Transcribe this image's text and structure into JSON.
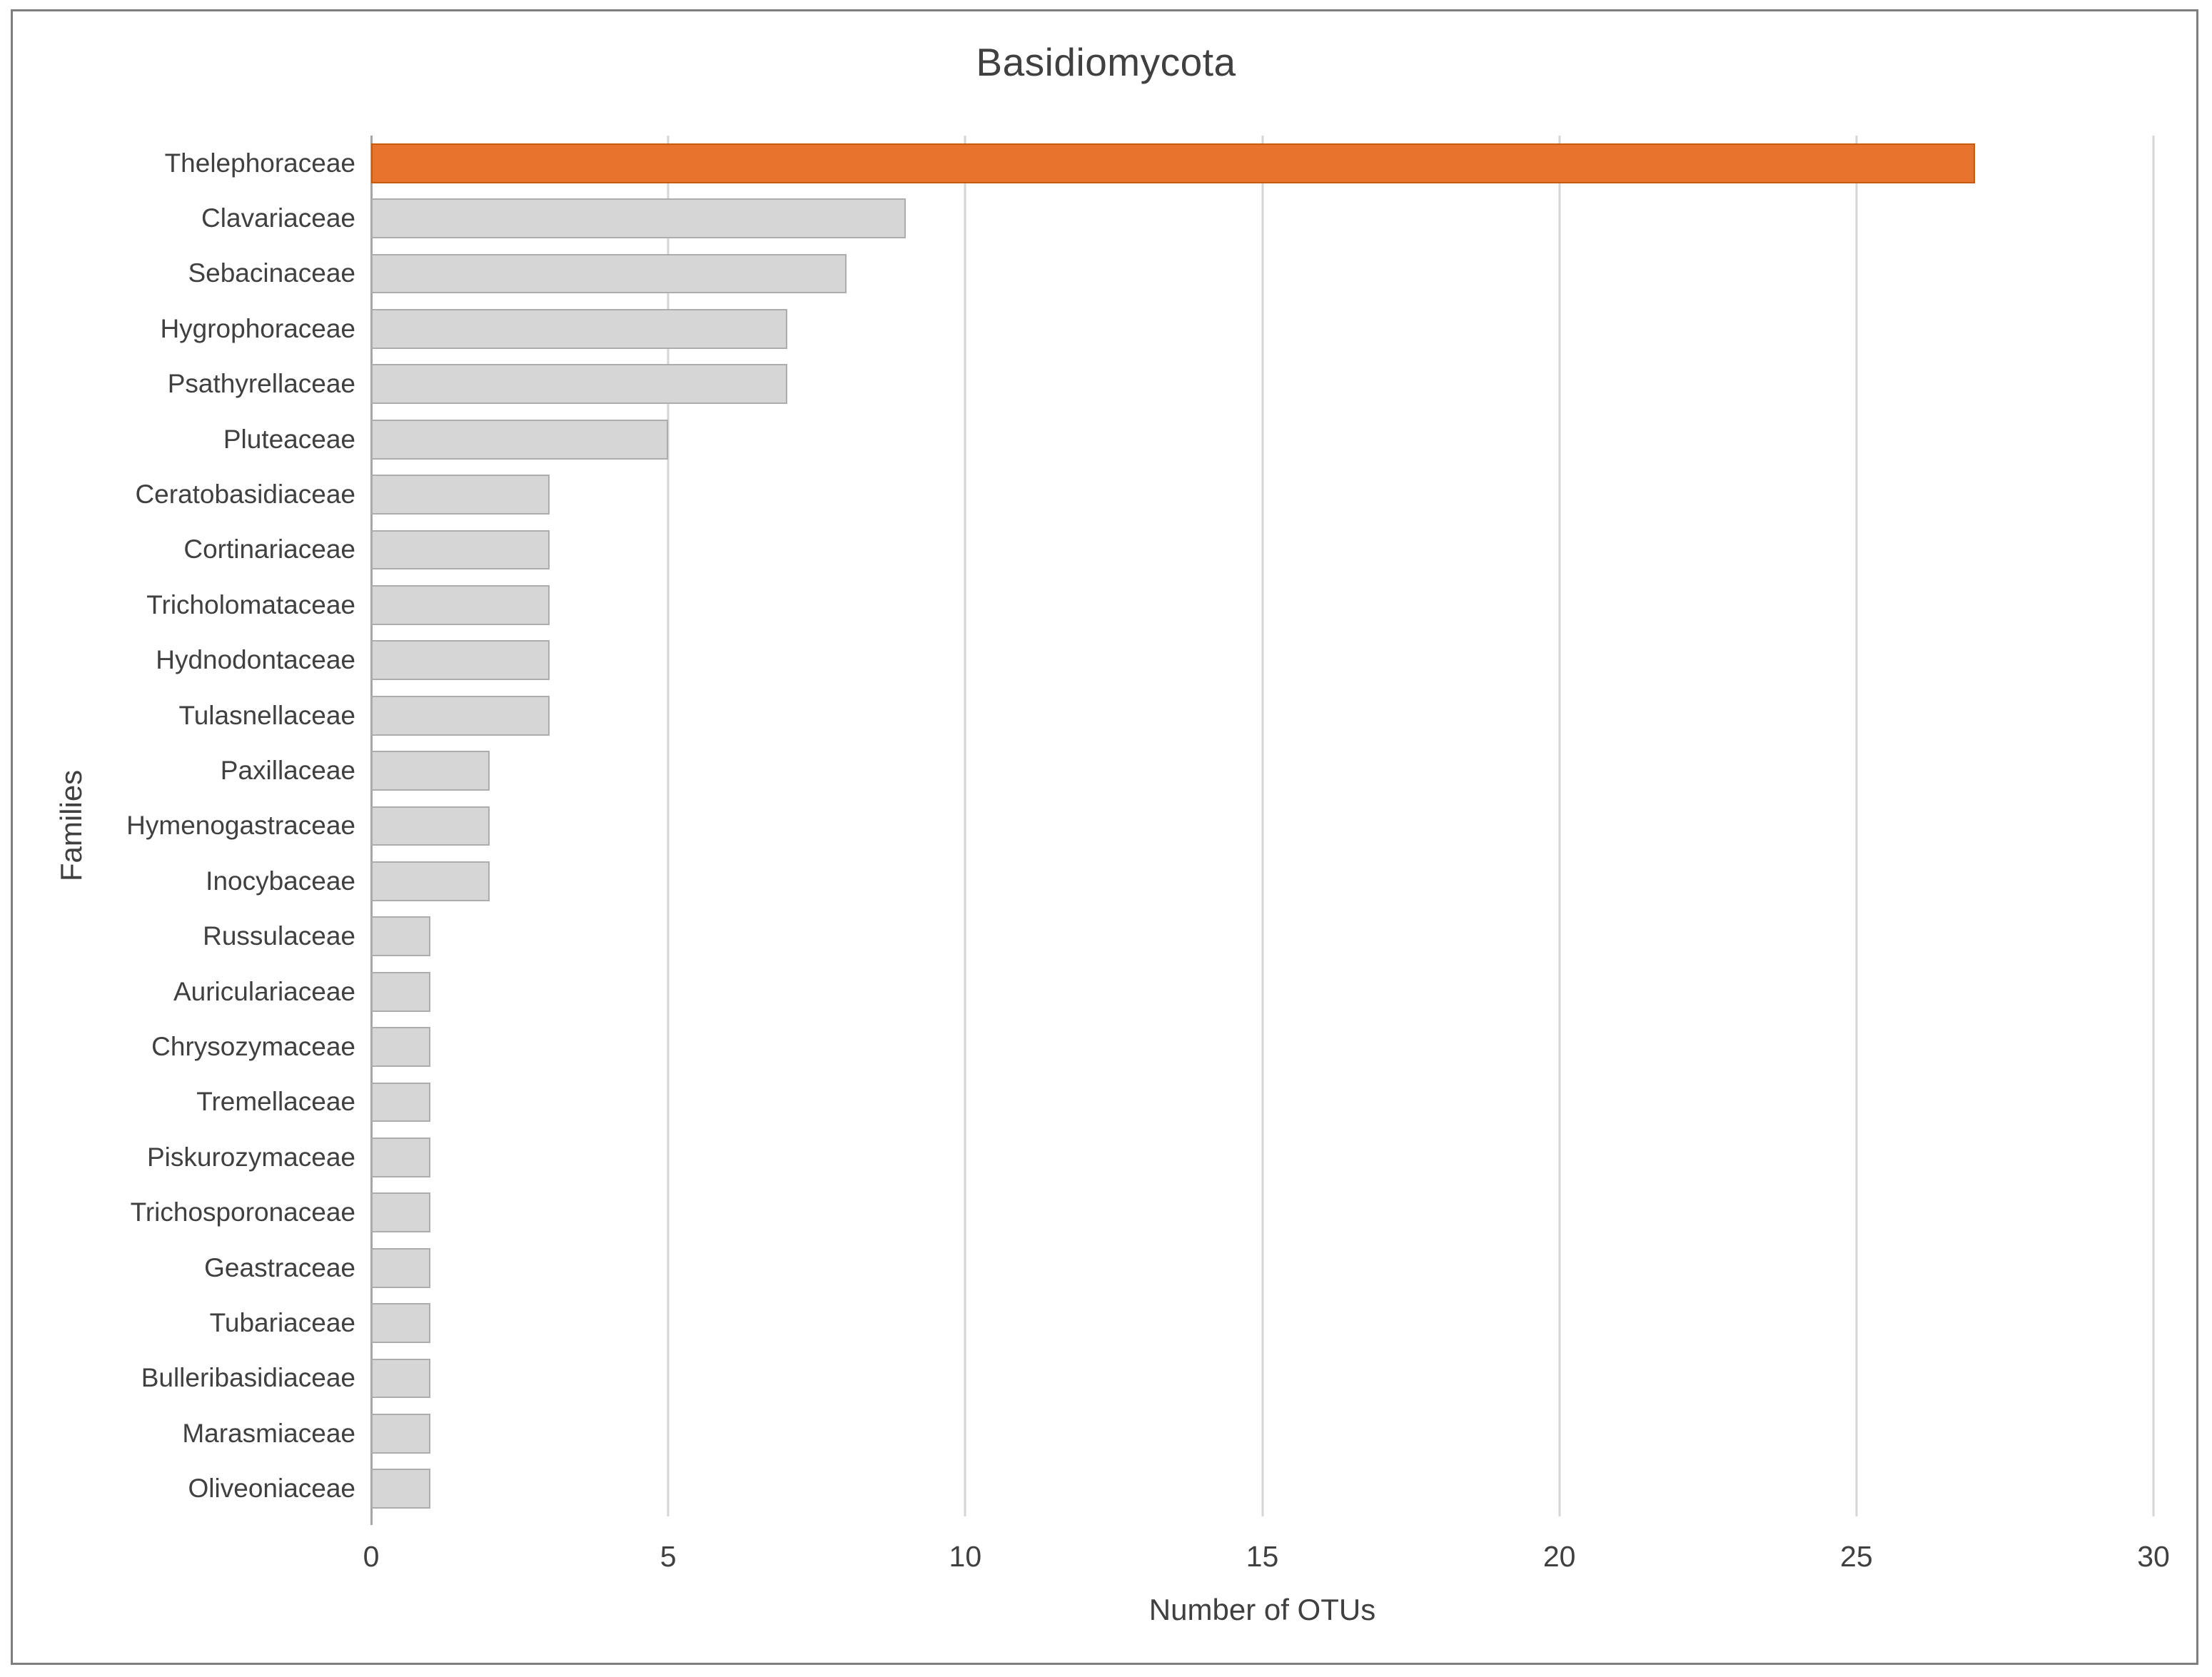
{
  "chart_data": {
    "type": "bar",
    "orientation": "horizontal",
    "title": "Basidiomycota",
    "xlabel": "Number of OTUs",
    "ylabel": "Families",
    "xlim": [
      0,
      30
    ],
    "xticks": [
      0,
      5,
      10,
      15,
      20,
      25,
      30
    ],
    "grid": "vertical-gridlines-on",
    "legend": "none",
    "categories": [
      "Thelephoraceae",
      "Clavariaceae",
      "Sebacinaceae",
      "Hygrophoraceae",
      "Psathyrellaceae",
      "Pluteaceae",
      "Ceratobasidiaceae",
      "Cortinariaceae",
      "Tricholomataceae",
      "Hydnodontaceae",
      "Tulasnellaceae",
      "Paxillaceae",
      "Hymenogastraceae",
      "Inocybaceae",
      "Russulaceae",
      "Auriculariaceae",
      "Chrysozymaceae",
      "Tremellaceae",
      "Piskurozymaceae",
      "Trichosporonaceae",
      "Geastraceae",
      "Tubariaceae",
      "Bulleribasidiaceae",
      "Marasmiaceae",
      "Oliveoniaceae"
    ],
    "values": [
      27,
      9,
      8,
      7,
      7,
      5,
      3,
      3,
      3,
      3,
      3,
      2,
      2,
      2,
      1,
      1,
      1,
      1,
      1,
      1,
      1,
      1,
      1,
      1,
      1
    ],
    "highlight_category": "Thelephoraceae",
    "highlight_index": 0
  },
  "colors": {
    "highlight_fill": "#E8732D",
    "highlight_border": "#C55A11",
    "bar_fill": "#D6D6D6",
    "bar_border": "#ADADAD",
    "gridline": "#D6D6D6",
    "axis_line": "#A6A6A6",
    "text": "#404040",
    "frame_border": "#7E7E7E"
  }
}
